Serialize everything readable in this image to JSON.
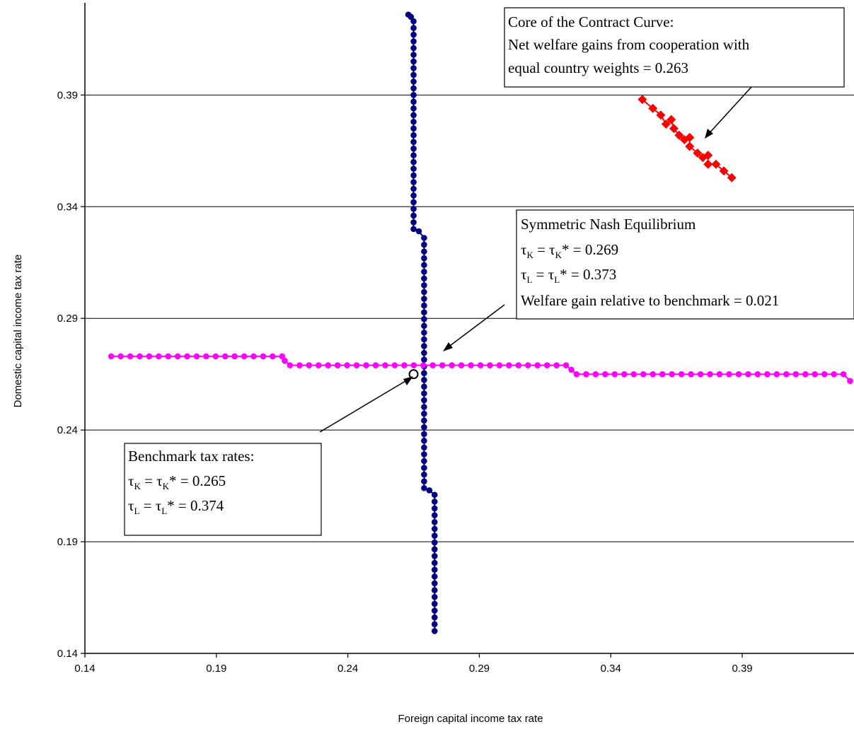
{
  "chart_data": {
    "type": "scatter",
    "xlabel": "Foreign capital income tax rate",
    "ylabel": "Domestic capital income tax rate",
    "xlim": [
      0.14,
      0.4325
    ],
    "ylim": [
      0.14,
      0.43
    ],
    "x_ticks": [
      0.14,
      0.19,
      0.24,
      0.29,
      0.34,
      0.39
    ],
    "y_ticks": [
      0.14,
      0.19,
      0.24,
      0.29,
      0.34,
      0.39
    ],
    "x_tick_labels": [
      "0.14",
      "0.19",
      "0.24",
      "0.29",
      "0.34",
      "0.39"
    ],
    "y_tick_labels": [
      "0.14",
      "0.19",
      "0.24",
      "0.29",
      "0.34",
      "0.39"
    ],
    "grid": "horizontal",
    "colors": {
      "blue": "#000080",
      "magenta": "#ff00ff",
      "red": "#ff0000"
    },
    "series": [
      {
        "marker": "circle",
        "color": "#000080",
        "segments": [
          {
            "x": 0.263,
            "y_from": 0.426,
            "y_to": 0.426
          },
          {
            "x": 0.265,
            "y_from": 0.33,
            "y_to": 0.423
          },
          {
            "x": 0.269,
            "y_from": 0.214,
            "y_to": 0.326
          },
          {
            "x": 0.273,
            "y_from": 0.15,
            "y_to": 0.211
          }
        ],
        "extra_points": [
          [
            0.264,
            0.425
          ],
          [
            0.267,
            0.329
          ],
          [
            0.271,
            0.213
          ]
        ]
      },
      {
        "marker": "circle",
        "color": "#ff00ff",
        "segments": [
          {
            "y": 0.273,
            "x_from": 0.15,
            "x_to": 0.215
          },
          {
            "y": 0.269,
            "x_from": 0.218,
            "x_to": 0.323
          },
          {
            "y": 0.265,
            "x_from": 0.327,
            "x_to": 0.4285
          }
        ],
        "extra_points": [
          [
            0.216,
            0.271
          ],
          [
            0.325,
            0.267
          ],
          [
            0.431,
            0.262
          ]
        ]
      },
      {
        "marker": "diamond",
        "color": "#ff0000",
        "points": [
          [
            0.352,
            0.388
          ],
          [
            0.356,
            0.384
          ],
          [
            0.359,
            0.381
          ],
          [
            0.361,
            0.377
          ],
          [
            0.363,
            0.379
          ],
          [
            0.364,
            0.375
          ],
          [
            0.366,
            0.372
          ],
          [
            0.368,
            0.37
          ],
          [
            0.37,
            0.371
          ],
          [
            0.37,
            0.367
          ],
          [
            0.373,
            0.364
          ],
          [
            0.375,
            0.362
          ],
          [
            0.377,
            0.363
          ],
          [
            0.377,
            0.359
          ],
          [
            0.38,
            0.359
          ],
          [
            0.383,
            0.356
          ],
          [
            0.386,
            0.353
          ]
        ]
      }
    ],
    "benchmark_point": [
      0.265,
      0.265
    ],
    "annotations": {
      "core": {
        "lines": [
          "Core of the Contract Curve:",
          "Net welfare gains from cooperation with",
          "equal country weights = 0.263"
        ]
      },
      "nash": {
        "title": "Symmetric Nash Equilibrium",
        "line2": {
          "tau": "τ",
          "sub": "K",
          "mid": " = τ",
          "sub2": "K",
          "end": "* = 0.269"
        },
        "line3": {
          "tau": "τ",
          "sub": "L",
          "mid": " = τ",
          "sub2": "L",
          "end": "* = 0.373"
        },
        "line4": "Welfare gain relative to benchmark = 0.021"
      },
      "benchmark": {
        "title": "Benchmark tax rates:",
        "line2": {
          "tau": "τ",
          "sub": "K",
          "mid": " = τ",
          "sub2": "K",
          "end": "* = 0.265"
        },
        "line3": {
          "tau": "τ",
          "sub": "L",
          "mid": " = τ",
          "sub2": "L",
          "end": "* = 0.374"
        }
      }
    }
  }
}
